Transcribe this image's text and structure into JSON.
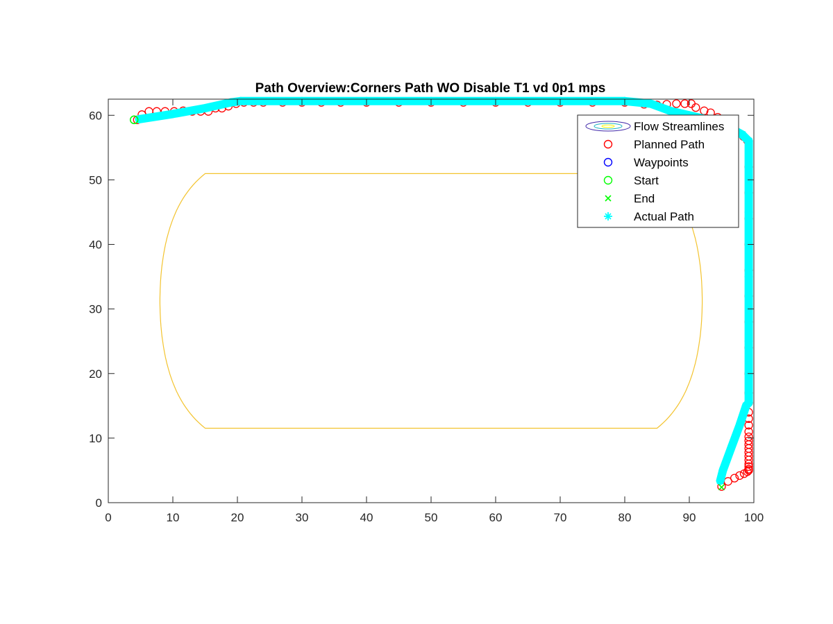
{
  "chart_data": {
    "type": "line",
    "title": "Path Overview:Corners Path WO Disable T1 vd 0p1 mps",
    "xlabel": "",
    "ylabel": "",
    "xlim": [
      0,
      100
    ],
    "ylim": [
      0,
      62.5
    ],
    "xticks": [
      0,
      10,
      20,
      30,
      40,
      50,
      60,
      70,
      80,
      90,
      100
    ],
    "yticks": [
      0,
      10,
      20,
      30,
      40,
      50,
      60
    ],
    "grid": false,
    "legend_location": "top-right",
    "legend": [
      "Flow Streamlines",
      "Planned Path",
      "Waypoints",
      "Start",
      "End",
      "Actual Path"
    ],
    "colors": {
      "planned": "#ff0000",
      "waypoints": "#0000ff",
      "start": "#00ff00",
      "end": "#00ff00",
      "actual": "#00ffff",
      "axes": "#262626"
    },
    "streamlines": {
      "center": [
        15,
        31.25
      ],
      "x_crossings": [
        26.8,
        34.5,
        42,
        49.2,
        56.4,
        63.8,
        71,
        78,
        85,
        92
      ],
      "colors": [
        "#3e26a8",
        "#2e5ee7",
        "#1c8ed8",
        "#15b0c0",
        "#20bca6",
        "#4ec38a",
        "#93c069",
        "#c3b858",
        "#e6ac3d",
        "#f3c32e",
        "#f9e51e",
        "#f8fa0d"
      ]
    },
    "series": [
      {
        "name": "Planned Path",
        "marker": "o",
        "x": [
          4.5,
          5.2,
          6.3,
          7.5,
          8.8,
          10.2,
          11.6,
          13,
          14.3,
          15.5,
          16.6,
          17.6,
          18.6,
          19.8,
          21,
          22.5,
          24,
          27,
          30,
          33,
          36,
          40,
          45,
          50,
          55,
          60,
          65,
          70,
          75,
          80,
          83,
          85,
          86.5,
          88,
          89.3,
          90.3,
          91,
          92.3,
          93.3,
          94.4,
          95.5,
          96.6,
          97.6,
          98.4,
          99,
          99.2,
          99.2,
          99.2,
          99.2,
          99.2,
          99.2,
          99.2,
          99.2,
          99.2,
          99.2,
          99.2,
          99.2,
          99.2,
          99.2,
          99.2,
          99.2,
          99.2,
          99.2,
          99.2,
          99.2,
          99.2,
          99.2,
          99.2,
          99.2,
          99.2,
          99.2,
          99,
          98.5,
          97.8,
          97,
          96,
          95
        ],
        "y": [
          59.3,
          60.1,
          60.6,
          60.6,
          60.6,
          60.6,
          60.7,
          60.6,
          60.6,
          60.6,
          61.1,
          61.1,
          61.4,
          61.8,
          62,
          62,
          62,
          62,
          62,
          62,
          62,
          62,
          62,
          62,
          62,
          62,
          62,
          62,
          62,
          62,
          61.7,
          61.6,
          61.7,
          61.8,
          61.8,
          61.8,
          61.2,
          60.7,
          60.4,
          59.7,
          58.9,
          58.2,
          57.3,
          56.7,
          56.1,
          52,
          48,
          44,
          40,
          36,
          32,
          28,
          24,
          20,
          17,
          15.5,
          14,
          13,
          12,
          11,
          10.2,
          9.6,
          9,
          8.4,
          7.8,
          7.2,
          6.6,
          6,
          5.6,
          5.2,
          5,
          4.8,
          4.5,
          4.2,
          3.8,
          3.3,
          2.5
        ]
      },
      {
        "name": "Waypoints",
        "marker": "o",
        "x": [],
        "y": []
      },
      {
        "name": "Start",
        "marker": "o",
        "x": [
          4
        ],
        "y": [
          59.3
        ]
      },
      {
        "name": "End",
        "marker": "x",
        "x": [
          95
        ],
        "y": [
          2.4
        ]
      },
      {
        "name": "Actual Path",
        "marker": "*",
        "x": [
          4.8,
          10,
          15,
          19,
          20.5,
          30,
          40,
          50,
          60,
          70,
          80,
          84,
          87,
          90,
          93,
          96,
          98.2,
          99.2,
          99.2,
          99.2,
          99.2,
          99.2,
          98.8,
          97.8,
          96.5,
          95.2,
          94.8
        ],
        "y": [
          59.4,
          60.2,
          61.1,
          62,
          62.2,
          62.2,
          62.2,
          62.2,
          62.2,
          62.2,
          62.2,
          61.8,
          60.7,
          60,
          59.3,
          58.2,
          57,
          56,
          45,
          35,
          25,
          15.5,
          15,
          12,
          8.5,
          5,
          3.4
        ]
      }
    ]
  }
}
